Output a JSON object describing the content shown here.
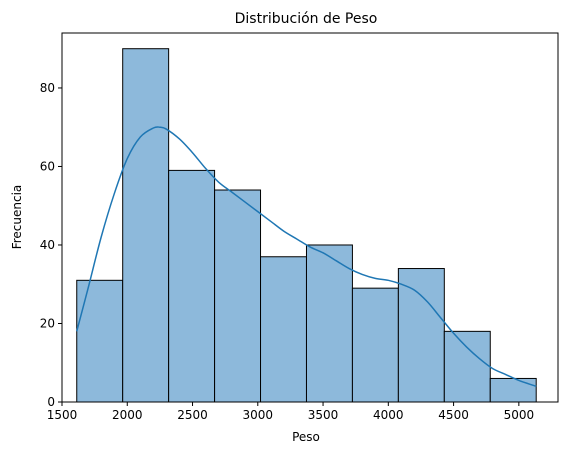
{
  "chart_data": {
    "type": "bar",
    "subtype": "histogram-with-kde",
    "title": "Distribución de Peso",
    "xlabel": "Peso",
    "ylabel": "Frecuencia",
    "xlim": [
      1500,
      5300
    ],
    "ylim": [
      0,
      94
    ],
    "x_ticks": [
      1500,
      2000,
      2500,
      3000,
      3500,
      4000,
      4500,
      5000
    ],
    "y_ticks": [
      0,
      20,
      40,
      60,
      80
    ],
    "bin_edges": [
      1613,
      1965,
      2317,
      2669,
      3021,
      3373,
      3725,
      4077,
      4429,
      4781,
      5133
    ],
    "counts": [
      31,
      90,
      59,
      54,
      37,
      40,
      29,
      34,
      18,
      6
    ],
    "bar_color": "#8db9db",
    "bar_edge_color": "#000000",
    "kde_color": "#1f77b4",
    "kde": {
      "x": [
        1613,
        1700,
        1800,
        1900,
        2000,
        2100,
        2200,
        2250,
        2300,
        2400,
        2500,
        2600,
        2700,
        2800,
        2900,
        3000,
        3100,
        3200,
        3300,
        3400,
        3500,
        3600,
        3700,
        3800,
        3900,
        4000,
        4100,
        4200,
        4300,
        4400,
        4500,
        4600,
        4700,
        4800,
        4900,
        5000,
        5133
      ],
      "y": [
        18,
        29,
        42,
        53,
        62,
        67.5,
        69.8,
        70,
        69.5,
        67,
        63.5,
        59.5,
        56,
        53.5,
        51,
        48.5,
        46,
        43.5,
        41.5,
        39.5,
        38,
        36,
        34,
        32.5,
        31.5,
        31,
        30,
        28.5,
        25.5,
        21.5,
        17.5,
        14,
        11,
        8.5,
        7,
        5.5,
        4
      ]
    },
    "grid": false,
    "legend": "none"
  }
}
